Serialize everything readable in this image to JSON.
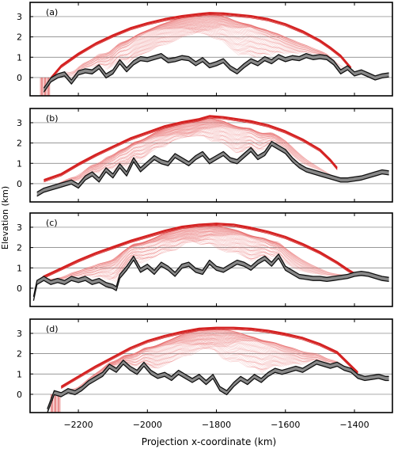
{
  "figure": {
    "ylabel": "Elevation (km)",
    "xlabel": "Projection x-coordinate (km)",
    "xticks": [
      -2200,
      -2000,
      -1800,
      -1600,
      -1400
    ],
    "xtick_labels": [
      "−2200",
      "−2000",
      "−1800",
      "−1600",
      "−1400"
    ],
    "yticks": [
      0,
      1,
      2,
      3
    ],
    "xlim": [
      -2340,
      -1290
    ],
    "ylim": [
      -0.9,
      3.7
    ]
  },
  "colors": {
    "surface": "#d42020",
    "flowline": "#e87070",
    "bed": "#111111",
    "bed_fill": "#888888"
  },
  "chart_data": [
    {
      "type": "line",
      "panel_label": "(a)",
      "series": [
        {
          "role": "ice-surface",
          "x": [
            -2280,
            -2250,
            -2200,
            -2150,
            -2100,
            -2050,
            -2000,
            -1950,
            -1900,
            -1850,
            -1820,
            -1780,
            -1700,
            -1650,
            -1600,
            -1550,
            -1500,
            -1470,
            -1440,
            -1410
          ],
          "y": [
            0.0,
            0.6,
            1.2,
            1.7,
            2.1,
            2.45,
            2.7,
            2.9,
            3.05,
            3.15,
            3.2,
            3.18,
            3.05,
            2.9,
            2.65,
            2.3,
            1.85,
            1.5,
            1.1,
            0.5
          ]
        },
        {
          "role": "bed",
          "x": [
            -2300,
            -2280,
            -2260,
            -2240,
            -2220,
            -2200,
            -2180,
            -2160,
            -2140,
            -2120,
            -2100,
            -2080,
            -2060,
            -2040,
            -2020,
            -2000,
            -1980,
            -1960,
            -1940,
            -1920,
            -1900,
            -1880,
            -1860,
            -1840,
            -1820,
            -1800,
            -1780,
            -1760,
            -1740,
            -1720,
            -1700,
            -1680,
            -1660,
            -1640,
            -1620,
            -1600,
            -1580,
            -1560,
            -1540,
            -1520,
            -1500,
            -1480,
            -1460,
            -1440,
            -1420,
            -1400,
            -1380,
            -1360,
            -1340,
            -1320,
            -1300
          ],
          "y": [
            -0.6,
            -0.1,
            0.1,
            0.2,
            -0.2,
            0.25,
            0.35,
            0.3,
            0.55,
            0.1,
            0.3,
            0.8,
            0.4,
            0.75,
            0.95,
            0.9,
            1.0,
            1.1,
            0.85,
            0.9,
            1.0,
            0.95,
            0.7,
            0.9,
            0.6,
            0.7,
            0.85,
            0.5,
            0.3,
            0.6,
            0.85,
            0.7,
            0.95,
            0.8,
            1.05,
            0.9,
            1.0,
            0.95,
            1.1,
            1.0,
            1.05,
            1.0,
            0.75,
            0.3,
            0.5,
            0.2,
            0.3,
            0.15,
            0.0,
            0.1,
            0.15
          ]
        }
      ]
    },
    {
      "type": "line",
      "panel_label": "(b)",
      "series": [
        {
          "role": "ice-surface",
          "x": [
            -2300,
            -2250,
            -2200,
            -2150,
            -2100,
            -2050,
            -2000,
            -1950,
            -1900,
            -1850,
            -1820,
            -1780,
            -1700,
            -1650,
            -1600,
            -1550,
            -1500,
            -1470,
            -1450
          ],
          "y": [
            0.2,
            0.5,
            1.0,
            1.45,
            1.85,
            2.25,
            2.55,
            2.85,
            3.05,
            3.2,
            3.35,
            3.3,
            3.1,
            2.9,
            2.6,
            2.2,
            1.7,
            1.2,
            0.8
          ]
        },
        {
          "role": "bed",
          "x": [
            -2320,
            -2300,
            -2280,
            -2260,
            -2240,
            -2220,
            -2200,
            -2180,
            -2160,
            -2140,
            -2120,
            -2100,
            -2080,
            -2060,
            -2040,
            -2020,
            -2000,
            -1980,
            -1960,
            -1940,
            -1920,
            -1900,
            -1880,
            -1860,
            -1840,
            -1820,
            -1800,
            -1780,
            -1760,
            -1740,
            -1720,
            -1700,
            -1680,
            -1660,
            -1640,
            -1620,
            -1600,
            -1580,
            -1560,
            -1540,
            -1520,
            -1500,
            -1480,
            -1460,
            -1440,
            -1420,
            -1400,
            -1380,
            -1360,
            -1340,
            -1320,
            -1300
          ],
          "y": [
            -0.5,
            -0.3,
            -0.2,
            -0.1,
            0.0,
            0.1,
            -0.1,
            0.3,
            0.5,
            0.2,
            0.7,
            0.4,
            0.9,
            0.5,
            1.2,
            0.7,
            1.0,
            1.3,
            1.1,
            1.0,
            1.4,
            1.2,
            1.0,
            1.3,
            1.5,
            1.1,
            1.3,
            1.5,
            1.2,
            1.1,
            1.4,
            1.7,
            1.3,
            1.5,
            2.0,
            1.8,
            1.6,
            1.2,
            0.9,
            0.7,
            0.6,
            0.5,
            0.4,
            0.3,
            0.2,
            0.2,
            0.25,
            0.3,
            0.4,
            0.5,
            0.6,
            0.55
          ]
        }
      ]
    },
    {
      "type": "line",
      "panel_label": "(c)",
      "series": [
        {
          "role": "ice-surface",
          "x": [
            -2320,
            -2300,
            -2250,
            -2200,
            -2150,
            -2100,
            -2050,
            -2000,
            -1950,
            -1900,
            -1850,
            -1800,
            -1750,
            -1700,
            -1650,
            -1600,
            -1550,
            -1500,
            -1450,
            -1420,
            -1400
          ],
          "y": [
            0.3,
            0.6,
            1.0,
            1.4,
            1.75,
            2.05,
            2.35,
            2.6,
            2.85,
            3.05,
            3.15,
            3.2,
            3.15,
            3.0,
            2.8,
            2.55,
            2.2,
            1.8,
            1.3,
            0.95,
            0.75
          ]
        },
        {
          "role": "bed",
          "x": [
            -2330,
            -2320,
            -2300,
            -2280,
            -2260,
            -2240,
            -2220,
            -2200,
            -2180,
            -2160,
            -2140,
            -2120,
            -2100,
            -2090,
            -2080,
            -2060,
            -2040,
            -2020,
            -2000,
            -1980,
            -1960,
            -1940,
            -1920,
            -1900,
            -1880,
            -1860,
            -1840,
            -1820,
            -1800,
            -1780,
            -1760,
            -1740,
            -1720,
            -1700,
            -1680,
            -1660,
            -1640,
            -1620,
            -1600,
            -1580,
            -1560,
            -1540,
            -1520,
            -1500,
            -1480,
            -1460,
            -1440,
            -1420,
            -1400,
            -1380,
            -1360,
            -1340,
            -1320,
            -1300
          ],
          "y": [
            -0.5,
            0.3,
            0.5,
            0.3,
            0.4,
            0.3,
            0.5,
            0.4,
            0.5,
            0.3,
            0.4,
            0.2,
            0.1,
            0.0,
            0.6,
            1.0,
            1.5,
            0.9,
            1.1,
            0.8,
            1.2,
            1.0,
            0.7,
            1.1,
            1.2,
            0.9,
            0.8,
            1.3,
            1.0,
            0.9,
            1.1,
            1.3,
            1.2,
            1.0,
            1.3,
            1.5,
            1.2,
            1.6,
            1.0,
            0.8,
            0.6,
            0.55,
            0.5,
            0.5,
            0.45,
            0.5,
            0.55,
            0.6,
            0.7,
            0.75,
            0.7,
            0.6,
            0.5,
            0.45
          ]
        }
      ]
    },
    {
      "type": "line",
      "panel_label": "(d)",
      "series": [
        {
          "role": "ice-surface",
          "x": [
            -2250,
            -2200,
            -2150,
            -2100,
            -2050,
            -2000,
            -1950,
            -1900,
            -1850,
            -1800,
            -1750,
            -1700,
            -1650,
            -1600,
            -1550,
            -1500,
            -1450,
            -1420,
            -1390
          ],
          "y": [
            0.4,
            0.9,
            1.4,
            1.85,
            2.3,
            2.65,
            2.9,
            3.1,
            3.25,
            3.3,
            3.3,
            3.25,
            3.15,
            3.0,
            2.8,
            2.5,
            2.1,
            1.6,
            1.1
          ]
        },
        {
          "role": "bed",
          "x": [
            -2290,
            -2270,
            -2250,
            -2230,
            -2210,
            -2190,
            -2170,
            -2150,
            -2130,
            -2110,
            -2090,
            -2070,
            -2050,
            -2030,
            -2010,
            -1990,
            -1970,
            -1950,
            -1930,
            -1910,
            -1890,
            -1870,
            -1850,
            -1830,
            -1810,
            -1790,
            -1770,
            -1750,
            -1730,
            -1710,
            -1690,
            -1670,
            -1650,
            -1630,
            -1610,
            -1590,
            -1570,
            -1550,
            -1530,
            -1510,
            -1490,
            -1470,
            -1450,
            -1430,
            -1410,
            -1390,
            -1370,
            -1350,
            -1330,
            -1310,
            -1300
          ],
          "y": [
            -0.8,
            0.1,
            0.0,
            0.2,
            0.1,
            0.3,
            0.6,
            0.8,
            1.0,
            1.4,
            1.2,
            1.6,
            1.3,
            1.1,
            1.5,
            1.1,
            0.9,
            1.0,
            0.8,
            1.1,
            0.9,
            0.7,
            0.9,
            0.6,
            0.9,
            0.3,
            0.1,
            0.5,
            0.8,
            0.6,
            0.9,
            0.7,
            1.0,
            1.2,
            1.1,
            1.2,
            1.3,
            1.2,
            1.4,
            1.6,
            1.5,
            1.4,
            1.5,
            1.3,
            1.2,
            0.9,
            0.8,
            0.85,
            0.9,
            0.8,
            0.8
          ]
        }
      ]
    }
  ]
}
